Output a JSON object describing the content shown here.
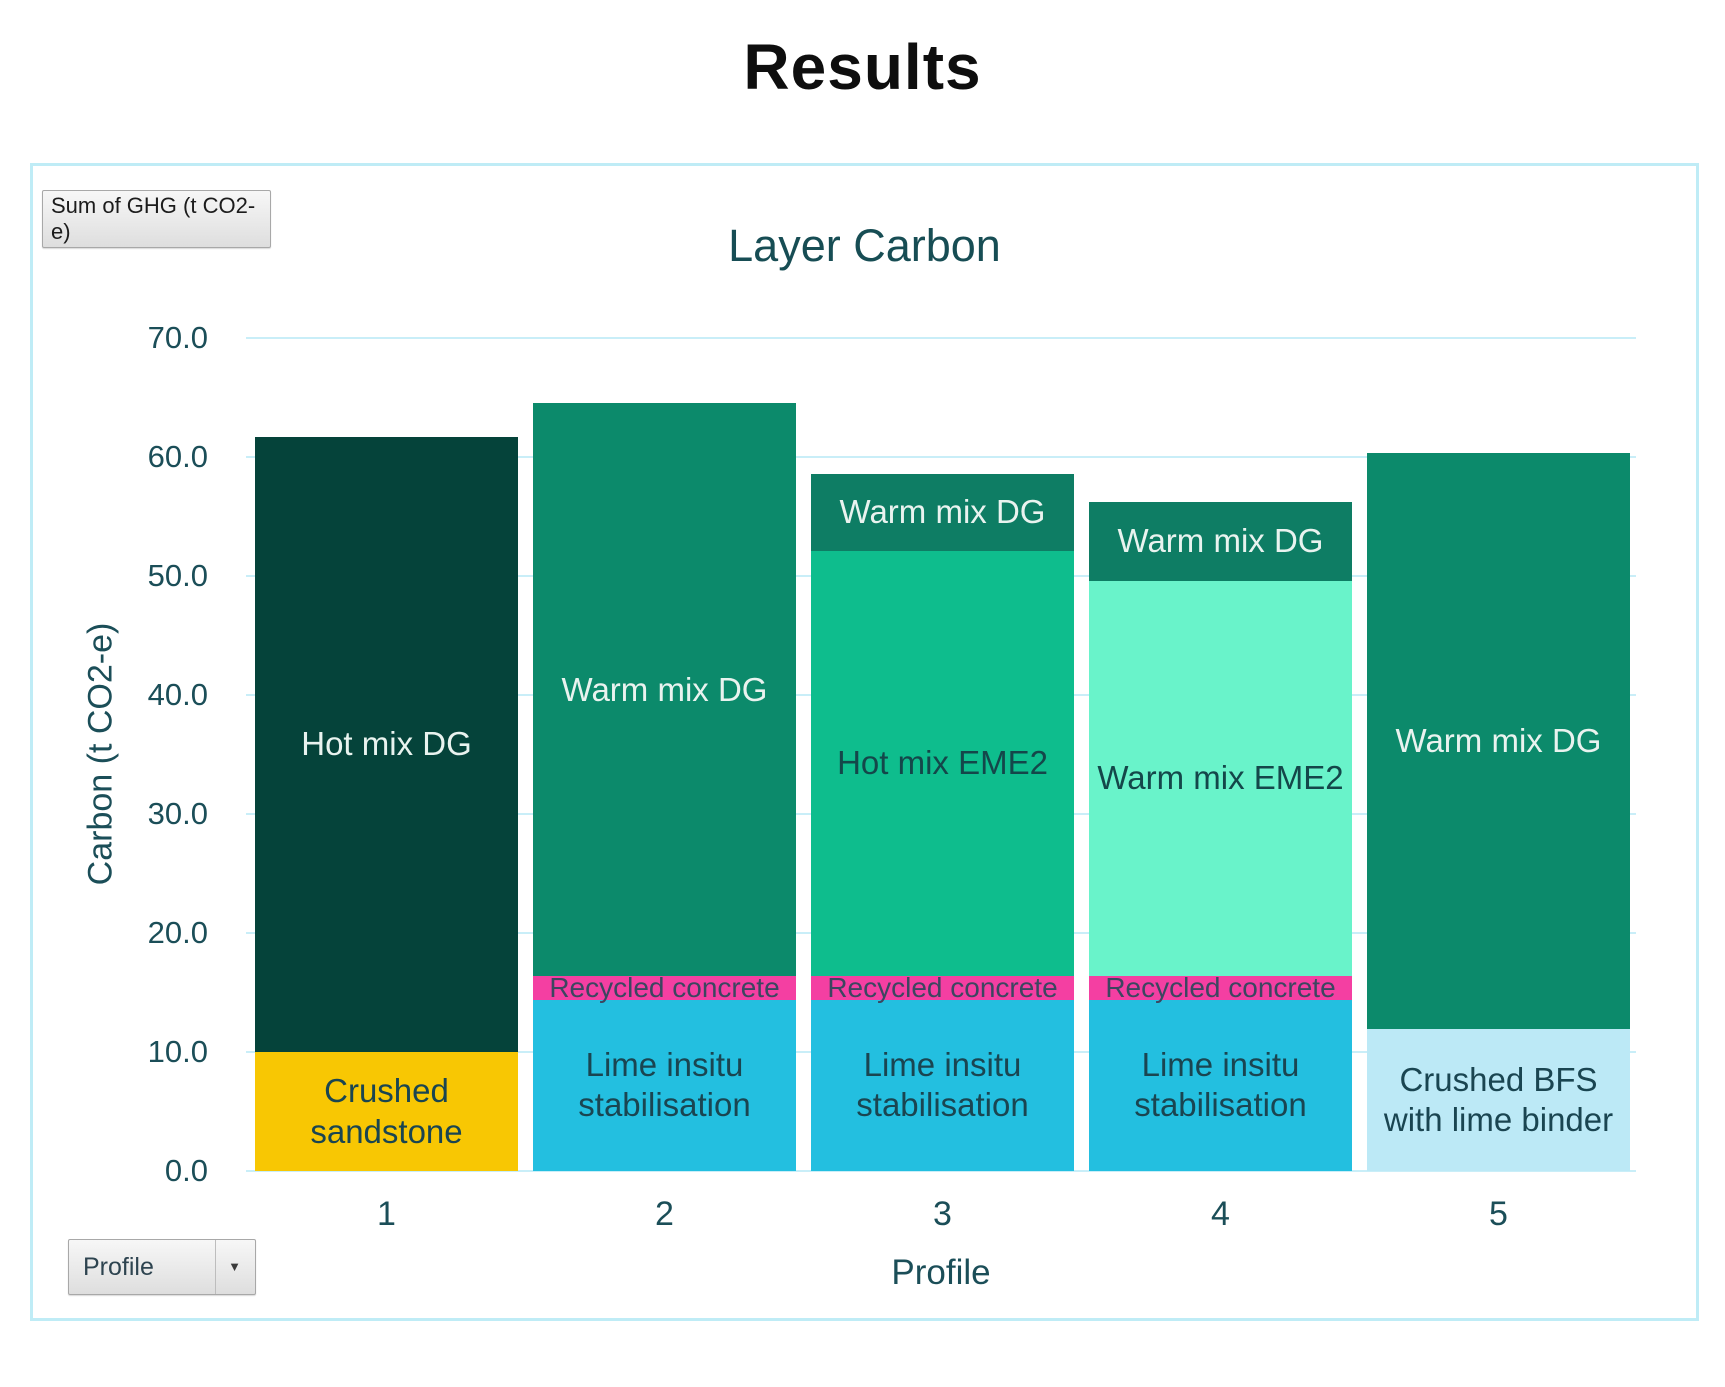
{
  "page": {
    "title": "Results"
  },
  "pivot": {
    "value_field_button": "Sum of GHG (t CO2-e)",
    "axis_field_button": "Profile",
    "dropdown_arrow": "▼"
  },
  "palette": {
    "chart_border": "#BFECF6",
    "gridline": "#C9EEF8",
    "axis_text": "#1B4E58",
    "chart_title_text": "#174D54",
    "page_title_text": "#0E0E0E"
  },
  "chart_data": {
    "type": "bar",
    "stacked": true,
    "title": "Layer Carbon",
    "xlabel": "Profile",
    "ylabel": "Carbon (t CO2-e)",
    "ylim": [
      0,
      70
    ],
    "ytick_step": 10,
    "ytick_labels": [
      "0.0",
      "10.0",
      "20.0",
      "30.0",
      "40.0",
      "50.0",
      "60.0",
      "70.0"
    ],
    "grid": true,
    "legend": "none",
    "categories": [
      "1",
      "2",
      "3",
      "4",
      "5"
    ],
    "bars": [
      {
        "category": "1",
        "total": 61.7,
        "segments": [
          {
            "name": "Crushed sandstone",
            "value": 10.0,
            "color": "#F8C703",
            "text_color": "#1A4551"
          },
          {
            "name": "Hot mix DG",
            "value": 51.7,
            "color": "#05433A",
            "text_color": "#E9F3EF"
          }
        ]
      },
      {
        "category": "2",
        "total": 64.5,
        "segments": [
          {
            "name": "Lime insitu stabilisation",
            "value": 14.4,
            "color": "#23BFE0",
            "text_color": "#1A4551"
          },
          {
            "name": "Recycled concrete",
            "value": 2.0,
            "color": "#F43FA2",
            "text_color": "#3C4660",
            "label_size": 28
          },
          {
            "name": "Warm mix DG",
            "value": 48.1,
            "color": "#0C8A6B",
            "text_color": "#E9F3EF"
          }
        ]
      },
      {
        "category": "3",
        "total": 58.6,
        "segments": [
          {
            "name": "Lime insitu stabilisation",
            "value": 14.4,
            "color": "#23BFE0",
            "text_color": "#1A4551"
          },
          {
            "name": "Recycled concrete",
            "value": 2.0,
            "color": "#F43FA2",
            "text_color": "#3C4660",
            "label_size": 28
          },
          {
            "name": "Hot mix EME2",
            "value": 35.7,
            "color": "#0EBD8D",
            "text_color": "#14474A"
          },
          {
            "name": "Warm mix DG",
            "value": 6.5,
            "color": "#0E7D64",
            "text_color": "#E9F3EF"
          }
        ]
      },
      {
        "category": "4",
        "total": 56.2,
        "segments": [
          {
            "name": "Lime insitu stabilisation",
            "value": 14.4,
            "color": "#23BFE0",
            "text_color": "#1A4551"
          },
          {
            "name": "Recycled concrete",
            "value": 2.0,
            "color": "#F43FA2",
            "text_color": "#3C4660",
            "label_size": 28
          },
          {
            "name": "Warm mix EME2",
            "value": 33.2,
            "color": "#69F3CA",
            "text_color": "#14474A"
          },
          {
            "name": "Warm mix DG",
            "value": 6.6,
            "color": "#0E7D64",
            "text_color": "#E9F3EF"
          }
        ]
      },
      {
        "category": "5",
        "total": 60.3,
        "segments": [
          {
            "name": "Crushed BFS with lime binder",
            "value": 11.9,
            "color": "#BCE9F6",
            "text_color": "#1A4551",
            "label_width_pct": 124
          },
          {
            "name": "Warm mix DG",
            "value": 48.4,
            "color": "#0C8A6B",
            "text_color": "#E9F3EF"
          }
        ]
      }
    ]
  }
}
